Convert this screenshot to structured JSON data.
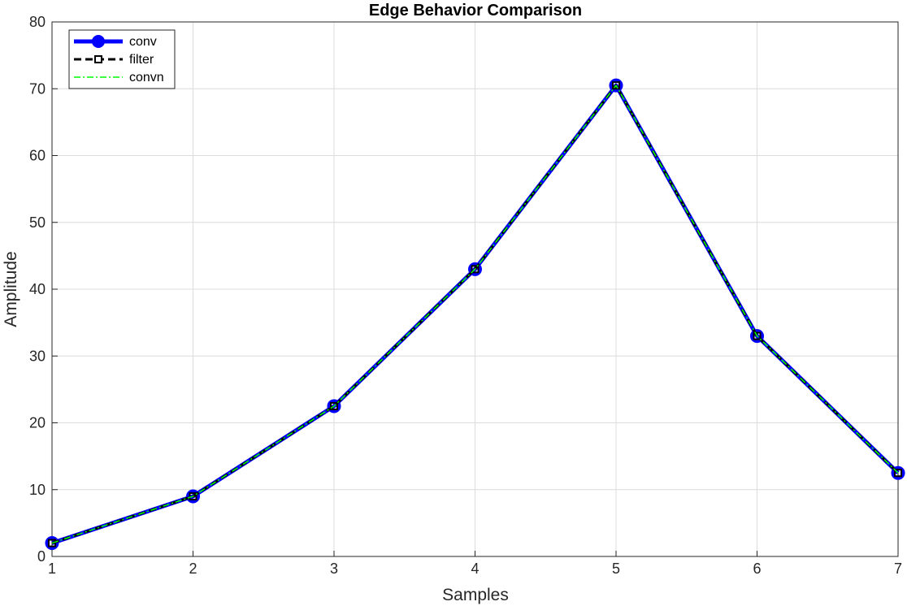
{
  "chart_data": {
    "type": "line",
    "title": "Edge Behavior Comparison",
    "xlabel": "Samples",
    "ylabel": "Amplitude",
    "xlim": [
      1,
      7
    ],
    "ylim": [
      0,
      80
    ],
    "xticks": [
      "1",
      "2",
      "3",
      "4",
      "5",
      "6",
      "7"
    ],
    "yticks": [
      "0",
      "10",
      "20",
      "30",
      "40",
      "50",
      "60",
      "70",
      "80"
    ],
    "grid": true,
    "legend_position": "top-left",
    "x": [
      1,
      2,
      3,
      4,
      5,
      6,
      7
    ],
    "series": [
      {
        "name": "conv",
        "values": [
          2,
          9,
          22.5,
          43,
          70.5,
          33,
          12.5
        ],
        "color": "#0000ff",
        "style": "solid-thick-circle-markers"
      },
      {
        "name": "filter",
        "values": [
          2,
          9,
          22.5,
          43,
          70.5,
          33,
          12.5
        ],
        "color": "#000000",
        "style": "dashed-square-markers"
      },
      {
        "name": "convn",
        "values": [
          2,
          9,
          22.5,
          43,
          70.5,
          33,
          12.5
        ],
        "color": "#00ff00",
        "style": "dash-dot"
      }
    ]
  }
}
